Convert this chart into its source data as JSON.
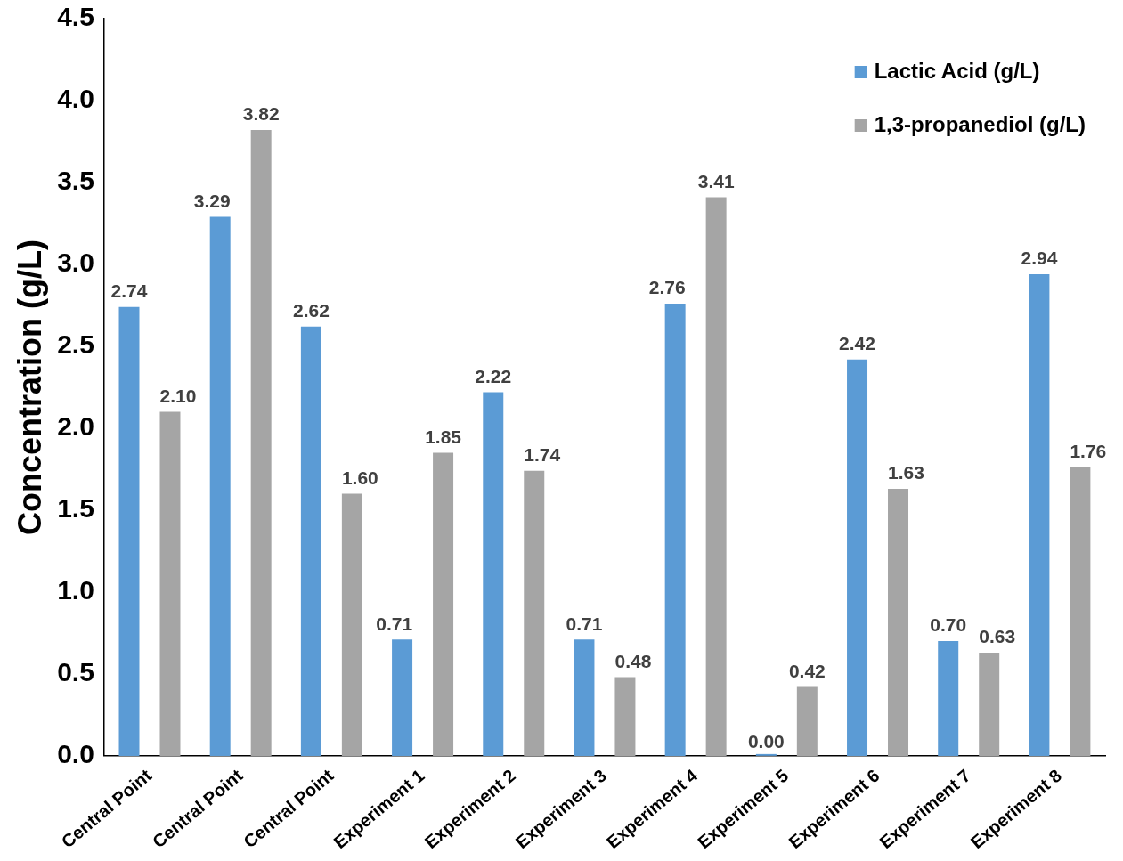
{
  "chart_data": {
    "type": "bar",
    "ylabel": "Concentration (g/L)",
    "categories": [
      "Central Point",
      "Central Point",
      "Central Point",
      "Experiment 1",
      "Experiment 2",
      "Experiment 3",
      "Experiment 4",
      "Experiment 5",
      "Experiment 6",
      "Experiment 7",
      "Experiment 8"
    ],
    "series": [
      {
        "name": "Lactic Acid (g/L)",
        "color": "#5b9bd5",
        "values": [
          2.74,
          3.29,
          2.62,
          0.71,
          2.22,
          0.71,
          2.76,
          0.0,
          2.42,
          0.7,
          2.94
        ],
        "value_labels": [
          "2.74",
          "3.29",
          "2.62",
          "0.71",
          "2.22",
          "0.71",
          "2.76",
          "0.00",
          "2.42",
          "0.70",
          "2.94"
        ]
      },
      {
        "name": "1,3-propanediol (g/L)",
        "color": "#a5a5a5",
        "values": [
          2.1,
          3.82,
          1.6,
          1.85,
          1.74,
          0.48,
          3.41,
          0.42,
          1.63,
          0.63,
          1.76
        ],
        "value_labels": [
          "2.10",
          "3.82",
          "1.60",
          "1.85",
          "1.74",
          "0.48",
          "3.41",
          "0.42",
          "1.63",
          "0.63",
          "1.76"
        ]
      }
    ],
    "ylim": [
      0,
      4.5
    ],
    "yticks": [
      {
        "value": 0,
        "label": "0.0"
      },
      {
        "value": 0.5,
        "label": "0.5"
      },
      {
        "value": 1,
        "label": "1.0"
      },
      {
        "value": 1.5,
        "label": "1.5"
      },
      {
        "value": 2,
        "label": "2.0"
      },
      {
        "value": 2.5,
        "label": "2.5"
      },
      {
        "value": 3,
        "label": "3.0"
      },
      {
        "value": 3.5,
        "label": "3.5"
      },
      {
        "value": 4,
        "label": "4.0"
      },
      {
        "value": 4.5,
        "label": "4.5"
      }
    ],
    "grid": false,
    "legend": "top right"
  }
}
